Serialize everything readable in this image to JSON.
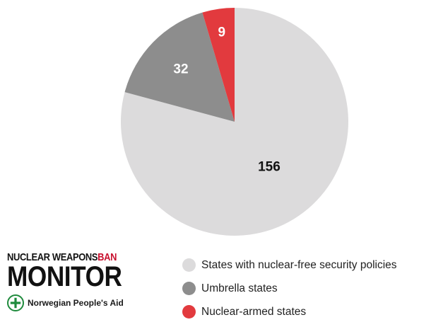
{
  "chart_data": {
    "type": "pie",
    "start_angle_deg": 0,
    "direction": "clockwise",
    "slices": [
      {
        "name": "States with nuclear-free security policies",
        "value": 156,
        "label": "156",
        "color": "#dcdbdc",
        "label_color": "#111111"
      },
      {
        "name": "Umbrella states",
        "value": 32,
        "label": "32",
        "color": "#8d8d8d",
        "label_color": "#ffffff"
      },
      {
        "name": "Nuclear-armed states",
        "value": 9,
        "label": "9",
        "color": "#e23a3e",
        "label_color": "#ffffff"
      }
    ],
    "legend_position": "bottom-right"
  },
  "legend": {
    "items": [
      {
        "label": "States with nuclear-free security policies",
        "color": "#dcdbdc"
      },
      {
        "label": "Umbrella states",
        "color": "#8d8d8d"
      },
      {
        "label": "Nuclear-armed states",
        "color": "#e23a3e"
      }
    ]
  },
  "brand": {
    "line1_main": "NUCLEAR WEAPONS",
    "line1_accent": "BAN",
    "line2": "MONITOR",
    "org_name": "Norwegian People's Aid",
    "org_logo_icon": "npa-cross-logo",
    "accent_color": "#c8102e",
    "org_color": "#1e8a3c"
  }
}
